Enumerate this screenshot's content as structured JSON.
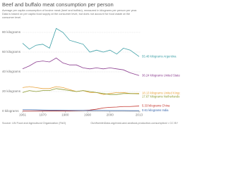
{
  "chart_data": {
    "type": "line",
    "title": "Beef and buffalo meat consumption per person",
    "subtitle": [
      "Average per capita consumption of bovine meat (beef and buffalo), measured in kilograms per person per year.",
      "Data is based on per capita food supply at the consumer level, but does not account for food waste at the",
      "consumer level."
    ],
    "source": "Source: UN Food and Agricultural Organization (FAO)",
    "credit": "OurWorldInData.org/meat-and-seafood-production-consumption/ • CC BY",
    "x": [
      1961,
      1964,
      1967,
      1970,
      1973,
      1976,
      1979,
      1982,
      1985,
      1988,
      1991,
      1994,
      1997,
      2000,
      2003,
      2006,
      2009,
      2013
    ],
    "xlim": [
      1961,
      2013
    ],
    "xticks": [
      1961,
      1970,
      1980,
      1990,
      2000,
      2013
    ],
    "ylim": [
      0,
      80
    ],
    "yticks": [
      {
        "value": 0,
        "label": "0 kilograms"
      },
      {
        "value": 20,
        "label": "20 kilograms"
      },
      {
        "value": 40,
        "label": "40 kilograms"
      },
      {
        "value": 60,
        "label": "60 kilograms"
      },
      {
        "value": 80,
        "label": "80 kilograms"
      }
    ],
    "grid": true,
    "series": [
      {
        "name": "Argentina",
        "color": "#3a9ea5",
        "values": [
          69,
          63,
          67,
          68,
          64,
          84,
          80,
          72,
          70,
          68,
          60,
          62,
          60,
          62,
          58,
          64,
          62,
          55.48
        ],
        "value_labels": [
          null,
          null,
          null,
          null,
          null,
          null,
          null,
          null,
          null,
          null,
          null,
          null,
          null,
          null,
          null,
          null,
          null,
          "55.48 kilograms"
        ]
      },
      {
        "name": "United States",
        "color": "#8b3d8f",
        "values": [
          43,
          46,
          50,
          51,
          50,
          54,
          49,
          47,
          47,
          44,
          43,
          44,
          43,
          44,
          43,
          42,
          39,
          36.24
        ],
        "value_labels": [
          null,
          null,
          null,
          null,
          null,
          null,
          null,
          null,
          null,
          null,
          null,
          null,
          null,
          null,
          null,
          null,
          null,
          "36.24 kilograms"
        ]
      },
      {
        "name": "United Kingdom",
        "color": "#e8a33c",
        "values": [
          24,
          25,
          24,
          23,
          23,
          25,
          24,
          22,
          20,
          21,
          19,
          19,
          17,
          18,
          19,
          19,
          18,
          18.13
        ],
        "value_labels": [
          null,
          null,
          null,
          null,
          null,
          null,
          null,
          null,
          null,
          null,
          null,
          null,
          null,
          null,
          null,
          null,
          null,
          "18.13 kilograms"
        ]
      },
      {
        "name": "Netherlands",
        "color": "#8c9a2e",
        "values": [
          19,
          21,
          20,
          21,
          21,
          23,
          22,
          21,
          20,
          21,
          20,
          19,
          18,
          17,
          17,
          18,
          18,
          17.67
        ],
        "value_labels": [
          null,
          null,
          null,
          null,
          null,
          null,
          null,
          null,
          null,
          null,
          null,
          null,
          null,
          null,
          null,
          null,
          null,
          "17.67 kilograms"
        ]
      },
      {
        "name": "China",
        "color": "#c4352e",
        "values": [
          0.2,
          0.2,
          0.2,
          0.3,
          0.3,
          0.3,
          0.3,
          0.4,
          0.6,
          0.8,
          1.2,
          2.1,
          3.4,
          4.0,
          4.3,
          4.8,
          4.8,
          5.33
        ],
        "value_labels": [
          null,
          null,
          null,
          null,
          null,
          null,
          null,
          null,
          null,
          null,
          null,
          null,
          null,
          null,
          null,
          null,
          null,
          "5.33 kilograms"
        ]
      },
      {
        "name": "India",
        "color": "#3461a8",
        "values": [
          1.5,
          1.5,
          1.4,
          1.2,
          1.1,
          1.1,
          1.0,
          0.9,
          0.9,
          0.9,
          0.8,
          0.8,
          0.8,
          0.7,
          0.7,
          0.7,
          0.6,
          0.61
        ],
        "value_labels": [
          null,
          null,
          null,
          null,
          null,
          null,
          null,
          null,
          null,
          null,
          null,
          null,
          null,
          null,
          null,
          null,
          null,
          "0.61 kilograms"
        ]
      }
    ]
  }
}
